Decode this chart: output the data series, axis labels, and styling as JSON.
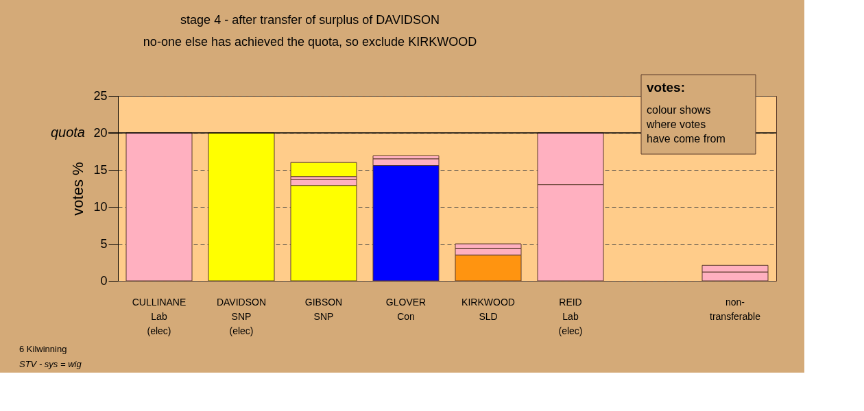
{
  "chart_data": {
    "type": "bar",
    "stacked": true,
    "title": "stage 4 - after transfer of surplus of DAVIDSON",
    "subtitle": "no-one else has achieved the quota, so exclude KIRKWOOD",
    "ylabel": "votes %",
    "categories": [
      "CULLINANE\nLab\n(elec)",
      "DAVIDSON\nSNP\n(elec)",
      "GIBSON\nSNP",
      "GLOVER\nCon",
      "KIRKWOOD\nSLD",
      "REID\nLab\n(elec)",
      null,
      "non-\ntransferable"
    ],
    "series": [
      {
        "colors": [
          "#ffb0c0",
          "#ffff00",
          "#ffff00",
          "#0000ff",
          "#ff9410",
          "#ffb0c0",
          null,
          "#ffb0c0"
        ],
        "values": [
          20,
          20,
          12.9,
          15.6,
          3.5,
          13.0,
          null,
          1.2
        ]
      },
      {
        "color": "#ffb0c0",
        "values": [
          null,
          null,
          0.8,
          0.9,
          0.9,
          7.0,
          null,
          0.9
        ]
      },
      {
        "color": "#ffb0c0",
        "values": [
          null,
          null,
          0.4,
          0.4,
          0.6,
          null,
          null,
          null
        ]
      },
      {
        "color": "#ffff00",
        "values": [
          null,
          null,
          1.9,
          null,
          null,
          null,
          null,
          null
        ]
      }
    ],
    "ylim": [
      0,
      25
    ],
    "yticks": [
      0,
      5,
      10,
      15,
      20,
      25
    ],
    "grid": "y",
    "ref_lines": [
      {
        "axis": "y",
        "value": 20,
        "label": "quota"
      }
    ],
    "annotations": [
      "votes:",
      "colour shows\nwhere votes\nhave come from",
      "6 Kilwinning",
      "STV - sys = wig"
    ]
  }
}
